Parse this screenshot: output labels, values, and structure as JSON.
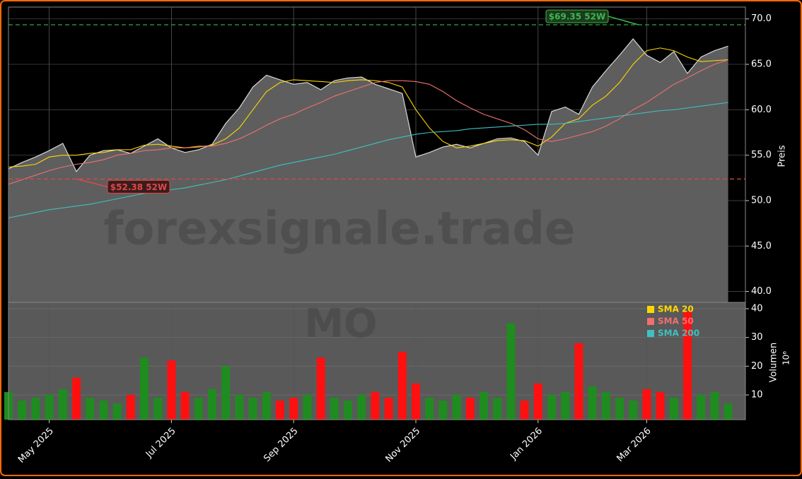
{
  "chart_data": {
    "type": "stock",
    "watermark": "forexsignale.trade",
    "symbol": "MO",
    "ylabel": "Preis",
    "y2label": "Volumen",
    "y2scale_label": "10⁶",
    "categories": [
      null,
      null,
      null,
      "May 2025",
      null,
      null,
      null,
      null,
      null,
      null,
      null,
      null,
      "Jul 2025",
      null,
      null,
      null,
      null,
      null,
      null,
      null,
      null,
      "Sep 2025",
      null,
      null,
      null,
      null,
      null,
      null,
      null,
      null,
      "Nov 2025",
      null,
      null,
      null,
      null,
      null,
      null,
      null,
      null,
      "Jan 2026",
      null,
      null,
      null,
      null,
      null,
      null,
      null,
      "Mar 2026",
      null,
      null,
      null,
      null,
      null,
      null
    ],
    "ylim": [
      38.8,
      71.3
    ],
    "yticks": [
      {
        "value": 40,
        "label": "40.0"
      },
      {
        "value": 45,
        "label": "45.0"
      },
      {
        "value": 50,
        "label": "50.0"
      },
      {
        "value": 55,
        "label": "55.0"
      },
      {
        "value": 60,
        "label": "60.0"
      },
      {
        "value": 65,
        "label": "65.0"
      },
      {
        "value": 70,
        "label": "70.0"
      }
    ],
    "y2lim": [
      1.4,
      42.2
    ],
    "y2ticks": [
      10,
      20,
      30,
      40
    ],
    "grid": true,
    "legend": "upper right",
    "close": {
      "color": "#d8d8d8",
      "fill": "#5e5e5e",
      "values": [
        53.5,
        54.2,
        54.8,
        55.5,
        56.3,
        53.2,
        55.0,
        55.5,
        55.6,
        55.2,
        56.0,
        56.8,
        55.8,
        55.3,
        55.6,
        56.2,
        58.5,
        60.2,
        62.5,
        63.8,
        63.3,
        62.8,
        63.0,
        62.2,
        63.2,
        63.5,
        63.6,
        62.8,
        62.3,
        61.8,
        54.8,
        55.3,
        55.9,
        56.2,
        55.8,
        56.3,
        56.8,
        56.9,
        56.5,
        55.0,
        59.8,
        60.3,
        59.5,
        62.5,
        64.3,
        66.0,
        67.8,
        66.0,
        65.2,
        66.4,
        64.0,
        65.8,
        66.5,
        67.0
      ]
    },
    "series": [
      {
        "name": "SMA 20",
        "color": "#ffd700",
        "values": [
          53.7,
          53.8,
          54.0,
          54.8,
          55.0,
          55.0,
          55.2,
          55.3,
          55.6,
          55.6,
          56.1,
          56.2,
          56.0,
          55.8,
          55.9,
          56.1,
          56.8,
          58.0,
          60.0,
          62.0,
          63.0,
          63.3,
          63.2,
          63.1,
          63.0,
          63.2,
          63.3,
          63.2,
          63.0,
          62.5,
          60.0,
          58.0,
          56.5,
          55.8,
          56.0,
          56.3,
          56.6,
          56.7,
          56.6,
          56.0,
          57.0,
          58.5,
          59.0,
          60.5,
          61.5,
          63.0,
          65.0,
          66.5,
          66.8,
          66.5,
          65.8,
          65.3,
          65.4,
          65.5
        ]
      },
      {
        "name": "SMA 50",
        "color": "#f07070",
        "values": [
          51.8,
          52.3,
          52.8,
          53.3,
          53.7,
          54.0,
          54.2,
          54.5,
          55.0,
          55.2,
          55.5,
          55.6,
          55.8,
          55.8,
          56.0,
          56.0,
          56.3,
          56.8,
          57.5,
          58.3,
          59.0,
          59.5,
          60.2,
          60.8,
          61.5,
          62.0,
          62.5,
          63.0,
          63.2,
          63.2,
          63.1,
          62.8,
          62.0,
          61.0,
          60.2,
          59.5,
          59.0,
          58.5,
          57.8,
          56.8,
          56.5,
          56.8,
          57.2,
          57.6,
          58.2,
          59.0,
          60.0,
          60.8,
          61.8,
          62.8,
          63.5,
          64.3,
          65.0,
          65.5
        ]
      },
      {
        "name": "SMA 200",
        "color": "#40c0c0",
        "values": [
          48.1,
          48.4,
          48.7,
          49.0,
          49.2,
          49.4,
          49.6,
          49.9,
          50.2,
          50.5,
          50.8,
          51.0,
          51.2,
          51.4,
          51.7,
          52.0,
          52.3,
          52.7,
          53.1,
          53.5,
          53.9,
          54.2,
          54.5,
          54.8,
          55.1,
          55.5,
          55.9,
          56.3,
          56.7,
          57.0,
          57.3,
          57.5,
          57.6,
          57.7,
          57.9,
          58.0,
          58.1,
          58.2,
          58.3,
          58.4,
          58.4,
          58.5,
          58.7,
          58.9,
          59.1,
          59.3,
          59.5,
          59.7,
          59.9,
          60.0,
          60.2,
          60.4,
          60.6,
          60.8
        ]
      }
    ],
    "volume": {
      "up_color": "#1e8c1e",
      "down_color": "#ff1010",
      "values": [
        11,
        8,
        9,
        10,
        12,
        16,
        9,
        8,
        7,
        10,
        23,
        9,
        22,
        11,
        9,
        12,
        20,
        10,
        9,
        11,
        8,
        9,
        10,
        23,
        9,
        8,
        10,
        11,
        9,
        25,
        14,
        9,
        8,
        10,
        9,
        11,
        9,
        35,
        8,
        14,
        10,
        11,
        28,
        13,
        11,
        9,
        8,
        12,
        11,
        9,
        39,
        10,
        11,
        7
      ]
    },
    "annotations": [
      {
        "text": "$69.35 52W",
        "value": 69.35,
        "color": "#3cb84a"
      },
      {
        "text": "$52.38 52W",
        "value": 52.38,
        "color": "#e04848"
      }
    ]
  }
}
